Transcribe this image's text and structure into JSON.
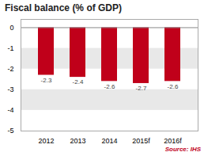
{
  "chart_data": {
    "type": "bar",
    "title": "Fiscal balance (% of GDP)",
    "categories": [
      "2012",
      "2013",
      "2014",
      "2015f",
      "2016f"
    ],
    "values": [
      -2.3,
      -2.4,
      -2.6,
      -2.7,
      -2.6
    ],
    "color": "#c0001a",
    "ylim": [
      -5,
      0.4
    ],
    "yticks": [
      0,
      -1,
      -2,
      -3,
      -4,
      -5
    ],
    "grid": true,
    "data_labels": true,
    "annotations": [
      {
        "text": "Source: IHS",
        "color": "#c0001a"
      }
    ]
  }
}
